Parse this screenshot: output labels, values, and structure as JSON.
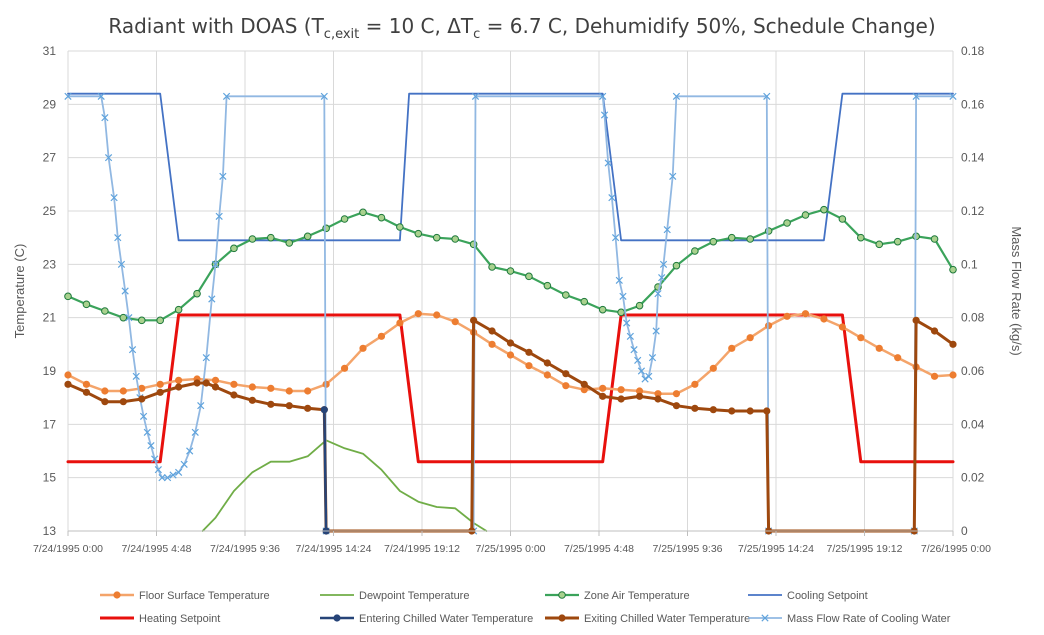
{
  "chart_data": {
    "type": "line",
    "title": "Radiant with DOAS (Tc,exit = 10 C, ΔTc = 6.7 C, Dehumidify 50%, Schedule Change)",
    "title_parts": {
      "pre": "Radiant with DOAS (T",
      "sub1": "c,exit",
      "mid": " = 10 C, ΔT",
      "sub2": "c",
      "post": " = 6.7 C, Dehumidify 50%, Schedule Change)"
    },
    "ylabel": "Temperature (C)",
    "y2label": "Mass Flow Rate (kg/s)",
    "ylim": [
      13,
      31
    ],
    "y2lim": [
      0,
      0.18
    ],
    "yticks": [
      "13",
      "15",
      "17",
      "19",
      "21",
      "23",
      "25",
      "27",
      "29",
      "31"
    ],
    "y2ticks": [
      "0",
      "0.02",
      "0.04",
      "0.06",
      "0.08",
      "0.1",
      "0.12",
      "0.14",
      "0.16",
      "0.18"
    ],
    "xlim_hours": [
      0,
      48
    ],
    "xtick_labels": [
      "7/24/1995 0:00",
      "7/24/1995 4:48",
      "7/24/1995 9:36",
      "7/24/1995 14:24",
      "7/24/1995 19:12",
      "7/25/1995 0:00",
      "7/25/1995 4:48",
      "7/25/1995 9:36",
      "7/25/1995 14:24",
      "7/25/1995 19:12",
      "7/26/1995 0:00"
    ],
    "grid": true,
    "legend_position": "bottom",
    "series": [
      {
        "name": "Floor Surface Temperature",
        "axis": "left",
        "color": "#F4A46A",
        "marker": "circle",
        "marker_color": "#ED7D31",
        "width": 2.5,
        "points": [
          [
            0,
            18.85
          ],
          [
            1,
            18.5
          ],
          [
            2,
            18.25
          ],
          [
            3,
            18.25
          ],
          [
            4,
            18.35
          ],
          [
            5,
            18.5
          ],
          [
            6,
            18.65
          ],
          [
            7,
            18.7
          ],
          [
            8,
            18.65
          ],
          [
            9,
            18.5
          ],
          [
            10,
            18.4
          ],
          [
            11,
            18.35
          ],
          [
            12,
            18.25
          ],
          [
            13,
            18.25
          ],
          [
            14,
            18.5
          ],
          [
            15,
            19.1
          ],
          [
            16,
            19.85
          ],
          [
            17,
            20.3
          ],
          [
            18,
            20.8
          ],
          [
            19,
            21.15
          ],
          [
            20,
            21.1
          ],
          [
            21,
            20.85
          ],
          [
            22,
            20.45
          ],
          [
            23,
            20.0
          ],
          [
            24,
            19.6
          ],
          [
            25,
            19.2
          ],
          [
            26,
            18.85
          ],
          [
            27,
            18.45
          ],
          [
            28,
            18.3
          ],
          [
            29,
            18.35
          ],
          [
            30,
            18.3
          ],
          [
            31,
            18.25
          ],
          [
            32,
            18.15
          ],
          [
            33,
            18.15
          ],
          [
            34,
            18.5
          ],
          [
            35,
            19.1
          ],
          [
            36,
            19.85
          ],
          [
            37,
            20.25
          ],
          [
            38,
            20.7
          ],
          [
            39,
            21.05
          ],
          [
            40,
            21.15
          ],
          [
            41,
            20.95
          ],
          [
            42,
            20.65
          ],
          [
            43,
            20.25
          ],
          [
            44,
            19.85
          ],
          [
            45,
            19.5
          ],
          [
            46,
            19.15
          ],
          [
            47,
            18.8
          ],
          [
            48,
            18.85
          ]
        ]
      },
      {
        "name": "Dewpoint Temperature",
        "axis": "left",
        "color": "#70AD47",
        "marker": "none",
        "width": 1.8,
        "points": [
          [
            7.3,
            13.0
          ],
          [
            8,
            13.5
          ],
          [
            9,
            14.5
          ],
          [
            10,
            15.2
          ],
          [
            11,
            15.6
          ],
          [
            12,
            15.6
          ],
          [
            13,
            15.8
          ],
          [
            14,
            16.4
          ],
          [
            15,
            16.1
          ],
          [
            16,
            15.9
          ],
          [
            17,
            15.3
          ],
          [
            18,
            14.5
          ],
          [
            19,
            14.1
          ],
          [
            20,
            13.9
          ],
          [
            21,
            13.85
          ],
          [
            22,
            13.3
          ],
          [
            22.7,
            13.0
          ]
        ]
      },
      {
        "name": "Zone Air Temperature",
        "axis": "left",
        "color": "#3BA35B",
        "marker": "circle_open",
        "marker_color": "#1E7A3C",
        "width": 2.2,
        "points": [
          [
            0,
            21.8
          ],
          [
            1,
            21.5
          ],
          [
            2,
            21.25
          ],
          [
            3,
            21.0
          ],
          [
            4,
            20.9
          ],
          [
            5,
            20.9
          ],
          [
            6,
            21.3
          ],
          [
            7,
            21.9
          ],
          [
            8,
            23.0
          ],
          [
            9,
            23.6
          ],
          [
            10,
            23.95
          ],
          [
            11,
            24.0
          ],
          [
            12,
            23.8
          ],
          [
            13,
            24.05
          ],
          [
            14,
            24.35
          ],
          [
            15,
            24.7
          ],
          [
            16,
            24.95
          ],
          [
            17,
            24.75
          ],
          [
            18,
            24.4
          ],
          [
            19,
            24.15
          ],
          [
            20,
            24.0
          ],
          [
            21,
            23.95
          ],
          [
            22,
            23.75
          ],
          [
            23,
            22.9
          ],
          [
            24,
            22.75
          ],
          [
            25,
            22.55
          ],
          [
            26,
            22.2
          ],
          [
            27,
            21.85
          ],
          [
            28,
            21.6
          ],
          [
            29,
            21.3
          ],
          [
            30,
            21.2
          ],
          [
            31,
            21.45
          ],
          [
            32,
            22.15
          ],
          [
            33,
            22.95
          ],
          [
            34,
            23.5
          ],
          [
            35,
            23.85
          ],
          [
            36,
            24.0
          ],
          [
            37,
            23.95
          ],
          [
            38,
            24.25
          ],
          [
            39,
            24.55
          ],
          [
            40,
            24.85
          ],
          [
            41,
            25.05
          ],
          [
            42,
            24.7
          ],
          [
            43,
            24.0
          ],
          [
            44,
            23.75
          ],
          [
            45,
            23.85
          ],
          [
            46,
            24.05
          ],
          [
            47,
            23.95
          ],
          [
            48,
            22.8
          ]
        ]
      },
      {
        "name": "Cooling Setpoint",
        "axis": "left",
        "color": "#4472C4",
        "marker": "none",
        "width": 1.8,
        "points": [
          [
            0,
            29.4
          ],
          [
            5,
            29.4
          ],
          [
            6,
            23.9
          ],
          [
            18,
            23.9
          ],
          [
            18.5,
            29.4
          ],
          [
            29,
            29.4
          ],
          [
            30,
            23.9
          ],
          [
            41,
            23.9
          ],
          [
            42,
            29.4
          ],
          [
            48,
            29.4
          ]
        ]
      },
      {
        "name": "Heating Setpoint",
        "axis": "left",
        "color": "#E8100D",
        "marker": "none",
        "width": 3,
        "points": [
          [
            0,
            15.6
          ],
          [
            5,
            15.6
          ],
          [
            6,
            21.1
          ],
          [
            18,
            21.1
          ],
          [
            19,
            15.6
          ],
          [
            29,
            15.6
          ],
          [
            30,
            21.1
          ],
          [
            42,
            21.1
          ],
          [
            43,
            15.6
          ],
          [
            48,
            15.6
          ]
        ]
      },
      {
        "name": "Entering Chilled Water Temperature",
        "axis": "left",
        "color": "#264478",
        "marker": "circle",
        "marker_color": "#264478",
        "width": 2.5,
        "points": [
          [
            13.9,
            17.55
          ],
          [
            14,
            13.0
          ]
        ]
      },
      {
        "name": "Exiting Chilled Water Temperature",
        "axis": "left",
        "color": "#9E480E",
        "marker": "circle",
        "marker_color": "#9E480E",
        "width": 3,
        "points": [
          [
            0,
            18.5
          ],
          [
            1,
            18.2
          ],
          [
            2,
            17.85
          ],
          [
            3,
            17.85
          ],
          [
            4,
            17.95
          ],
          [
            5,
            18.2
          ],
          [
            6,
            18.4
          ],
          [
            7,
            18.55
          ],
          [
            7.5,
            18.55
          ],
          [
            8,
            18.4
          ],
          [
            9,
            18.1
          ],
          [
            10,
            17.9
          ],
          [
            11,
            17.75
          ],
          [
            12,
            17.7
          ],
          [
            13,
            17.6
          ],
          [
            13.9,
            17.55
          ],
          [
            14,
            13.0
          ],
          [
            21.9,
            13.0
          ],
          [
            22,
            20.9
          ],
          [
            23,
            20.5
          ],
          [
            24,
            20.05
          ],
          [
            25,
            19.7
          ],
          [
            26,
            19.3
          ],
          [
            27,
            18.9
          ],
          [
            28,
            18.5
          ],
          [
            29,
            18.05
          ],
          [
            30,
            17.95
          ],
          [
            31,
            18.05
          ],
          [
            32,
            17.95
          ],
          [
            33,
            17.7
          ],
          [
            34,
            17.6
          ],
          [
            35,
            17.55
          ],
          [
            36,
            17.5
          ],
          [
            37,
            17.5
          ],
          [
            37.9,
            17.5
          ],
          [
            38,
            13.0
          ],
          [
            45.9,
            13.0
          ],
          [
            46,
            20.9
          ],
          [
            47,
            20.5
          ],
          [
            48,
            20.0
          ]
        ]
      },
      {
        "name": "Mass Flow Rate of Cooling Water",
        "axis": "right",
        "color": "#91B8E2",
        "marker": "x",
        "marker_color": "#5FA3DC",
        "width": 1.8,
        "points": [
          [
            0,
            0.163
          ],
          [
            1.8,
            0.163
          ],
          [
            2.0,
            0.155
          ],
          [
            2.2,
            0.14
          ],
          [
            2.5,
            0.125
          ],
          [
            2.7,
            0.11
          ],
          [
            2.9,
            0.1
          ],
          [
            3.1,
            0.09
          ],
          [
            3.3,
            0.08
          ],
          [
            3.5,
            0.068
          ],
          [
            3.7,
            0.058
          ],
          [
            3.9,
            0.05
          ],
          [
            4.1,
            0.043
          ],
          [
            4.3,
            0.037
          ],
          [
            4.5,
            0.032
          ],
          [
            4.7,
            0.027
          ],
          [
            4.9,
            0.023
          ],
          [
            5.1,
            0.02
          ],
          [
            5.4,
            0.02
          ],
          [
            5.7,
            0.021
          ],
          [
            6.0,
            0.022
          ],
          [
            6.3,
            0.025
          ],
          [
            6.6,
            0.03
          ],
          [
            6.9,
            0.037
          ],
          [
            7.2,
            0.047
          ],
          [
            7.5,
            0.065
          ],
          [
            7.8,
            0.087
          ],
          [
            8.0,
            0.1
          ],
          [
            8.2,
            0.118
          ],
          [
            8.4,
            0.133
          ],
          [
            8.6,
            0.163
          ],
          [
            13.9,
            0.163
          ],
          [
            14.0,
            0.0
          ],
          [
            22.0,
            0.0
          ],
          [
            22.1,
            0.163
          ],
          [
            29.0,
            0.163
          ],
          [
            29.1,
            0.156
          ],
          [
            29.3,
            0.138
          ],
          [
            29.5,
            0.125
          ],
          [
            29.7,
            0.11
          ],
          [
            29.9,
            0.094
          ],
          [
            30.1,
            0.088
          ],
          [
            30.3,
            0.078
          ],
          [
            30.5,
            0.073
          ],
          [
            30.7,
            0.068
          ],
          [
            30.9,
            0.064
          ],
          [
            31.1,
            0.06
          ],
          [
            31.3,
            0.057
          ],
          [
            31.5,
            0.058
          ],
          [
            31.7,
            0.065
          ],
          [
            31.9,
            0.075
          ],
          [
            32.0,
            0.089
          ],
          [
            32.2,
            0.095
          ],
          [
            32.3,
            0.1
          ],
          [
            32.5,
            0.113
          ],
          [
            32.8,
            0.133
          ],
          [
            33.0,
            0.163
          ],
          [
            37.9,
            0.163
          ],
          [
            38.0,
            0.0
          ],
          [
            45.9,
            0.0
          ],
          [
            46.0,
            0.163
          ],
          [
            48,
            0.163
          ]
        ]
      }
    ]
  }
}
